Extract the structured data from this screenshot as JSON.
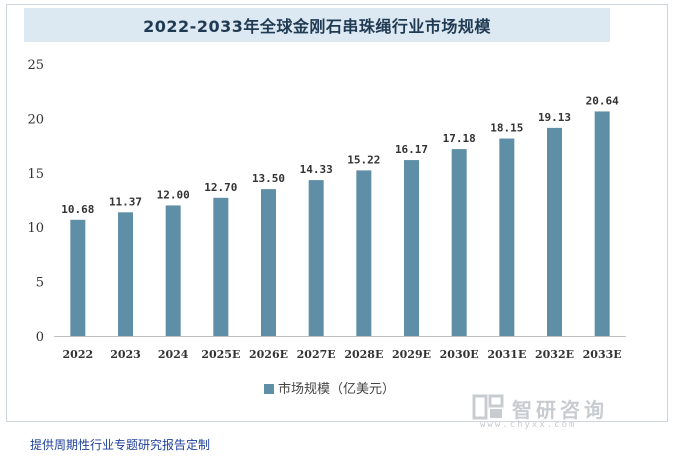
{
  "title": "2022-2033年全球金刚石串珠绳行业市场规模",
  "footer": "提供周期性行业专题研究报告定制",
  "watermark": {
    "brand": "智研咨询",
    "url": "www.chyxx.com"
  },
  "colors": {
    "bar": "#5f8fa6",
    "title_bg": "#dce9f2",
    "footer_text": "#1e3f9a"
  },
  "chart_data": {
    "type": "bar",
    "title": "2022-2033年全球金刚石串珠绳行业市场规模",
    "categories": [
      "2022",
      "2023",
      "2024",
      "2025E",
      "2026E",
      "2027E",
      "2028E",
      "2029E",
      "2030E",
      "2031E",
      "2032E",
      "2033E"
    ],
    "series": [
      {
        "name": "市场规模（亿美元）",
        "values": [
          10.68,
          11.37,
          12.0,
          12.7,
          13.5,
          14.33,
          15.22,
          16.17,
          17.18,
          18.15,
          19.13,
          20.64
        ]
      }
    ],
    "data_labels": [
      "10.68",
      "11.37",
      "12.00",
      "12.70",
      "13.50",
      "14.33",
      "15.22",
      "16.17",
      "17.18",
      "18.15",
      "19.13",
      "20.64"
    ],
    "yticks": [
      "0",
      "5",
      "10",
      "15",
      "20",
      "25"
    ],
    "ylim": [
      0,
      25
    ],
    "xlabel": "",
    "ylabel": "",
    "grid": false,
    "legend": "bottom-center"
  }
}
